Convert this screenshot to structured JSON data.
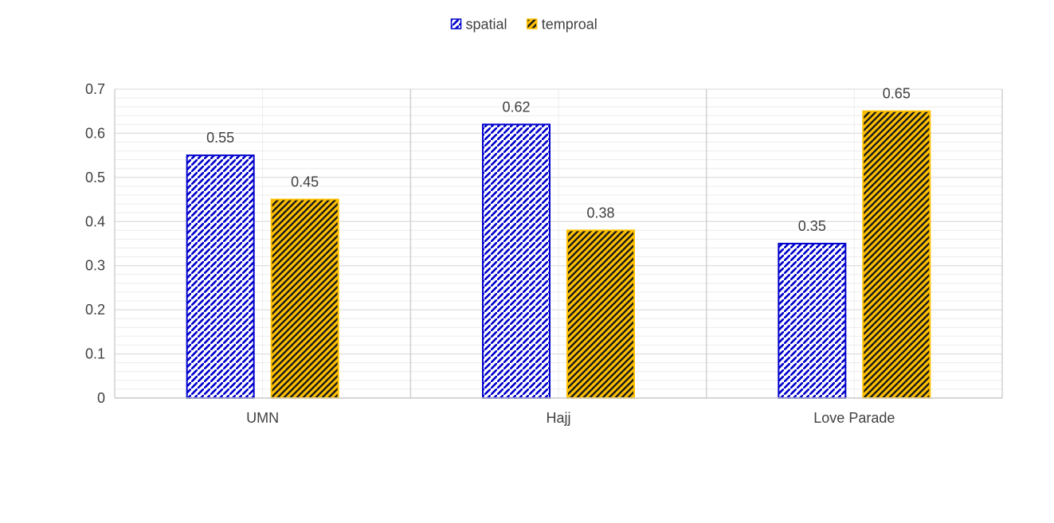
{
  "chart_data": {
    "type": "bar",
    "categories": [
      "UMN",
      "Hajj",
      "Love Parade"
    ],
    "series": [
      {
        "name": "spatial",
        "values": [
          0.55,
          0.62,
          0.35
        ],
        "color": "#0000CC",
        "pattern": "hatch-back-diagonal-blue-white"
      },
      {
        "name": "temproal",
        "values": [
          0.45,
          0.38,
          0.65
        ],
        "color": "#FFC000",
        "pattern": "hatch-forward-diagonal-orange-black"
      }
    ],
    "ylim": [
      0,
      0.7
    ],
    "yticks": [
      "0",
      "0.1",
      "0.2",
      "0.3",
      "0.4",
      "0.5",
      "0.6",
      "0.7"
    ],
    "data_labels": [
      [
        "0.55",
        "0.62",
        "0.35"
      ],
      [
        "0.45",
        "0.38",
        "0.65"
      ]
    ],
    "legend_position": "top-center",
    "grid": true,
    "title": "",
    "xlabel": "",
    "ylabel": ""
  }
}
